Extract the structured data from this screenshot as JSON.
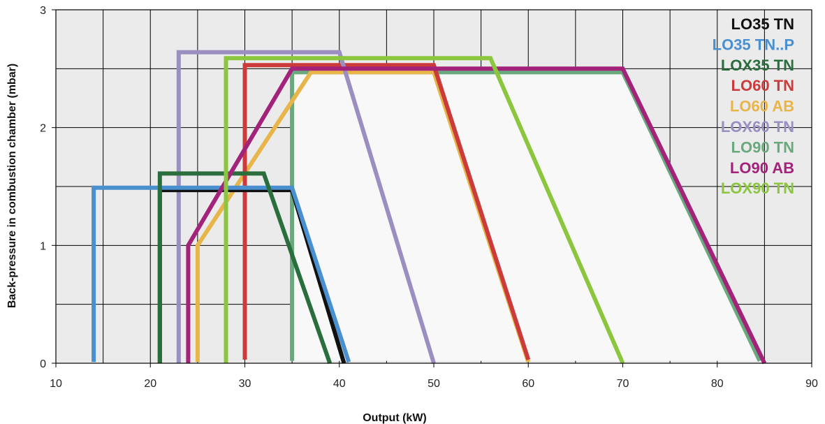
{
  "chart_data": {
    "type": "line",
    "title": "",
    "xlabel": "Output (kW)",
    "ylabel": "Back-pressure in combustion chamber (mbar)",
    "xlim": [
      10,
      90
    ],
    "ylim": [
      0,
      3
    ],
    "x_ticks": [
      "10",
      "20",
      "30",
      "40",
      "50",
      "60",
      "70",
      "80",
      "90"
    ],
    "y_ticks": [
      "0",
      "1",
      "2",
      "3"
    ],
    "grid": true,
    "legend_position": "top-right",
    "series": [
      {
        "name": "LO90 TN",
        "color": "#6aa87e",
        "fill": true,
        "x": [
          35,
          35,
          70,
          84.5
        ],
        "y": [
          0.02,
          2.47,
          2.47,
          0.02
        ]
      },
      {
        "name": "LO60 AB",
        "color": "#e8b54a",
        "x": [
          25,
          25,
          37,
          50,
          60
        ],
        "y": [
          0.01,
          1.0,
          2.47,
          2.47,
          0.01
        ]
      },
      {
        "name": "LO60 TN",
        "color": "#cc3b3b",
        "x": [
          30,
          30,
          50,
          60
        ],
        "y": [
          0.03,
          2.53,
          2.53,
          0.03
        ]
      },
      {
        "name": "LOX60 TN",
        "color": "#9b8fc2",
        "x": [
          23,
          23,
          40,
          50
        ],
        "y": [
          0,
          2.64,
          2.64,
          0
        ]
      },
      {
        "name": "LO35 TN",
        "color": "#111111",
        "x": [
          21,
          21,
          35,
          40.5
        ],
        "y": [
          0,
          1.47,
          1.47,
          0
        ]
      },
      {
        "name": "LO35 TN..P",
        "color": "#4a90d0",
        "x": [
          14,
          14,
          35,
          41
        ],
        "y": [
          0.01,
          1.49,
          1.49,
          0.01
        ]
      },
      {
        "name": "LOX35 TN",
        "color": "#2b6e3d",
        "x": [
          21,
          21,
          32,
          39
        ],
        "y": [
          0,
          1.61,
          1.61,
          0
        ]
      },
      {
        "name": "LO90 AB",
        "color": "#a3237a",
        "x": [
          24,
          24,
          35,
          70,
          85
        ],
        "y": [
          0,
          1.0,
          2.5,
          2.5,
          0
        ]
      },
      {
        "name": "LOX90 TN",
        "color": "#8cc63f",
        "x": [
          28,
          28,
          56,
          70
        ],
        "y": [
          0,
          2.59,
          2.59,
          0
        ]
      }
    ]
  },
  "legend": [
    {
      "label": "LO35 TN",
      "color": "#111111"
    },
    {
      "label": "LO35 TN..P",
      "color": "#4a90d0"
    },
    {
      "label": "LOX35 TN",
      "color": "#2b6e3d"
    },
    {
      "label": "LO60 TN",
      "color": "#cc3b3b"
    },
    {
      "label": "LO60 AB",
      "color": "#e8b54a"
    },
    {
      "label": "LOX60 TN",
      "color": "#9b8fc2"
    },
    {
      "label": "LO90 TN",
      "color": "#6aa87e"
    },
    {
      "label": "LO90 AB",
      "color": "#a3237a"
    },
    {
      "label": "LOX90 TN",
      "color": "#8cc63f"
    }
  ]
}
